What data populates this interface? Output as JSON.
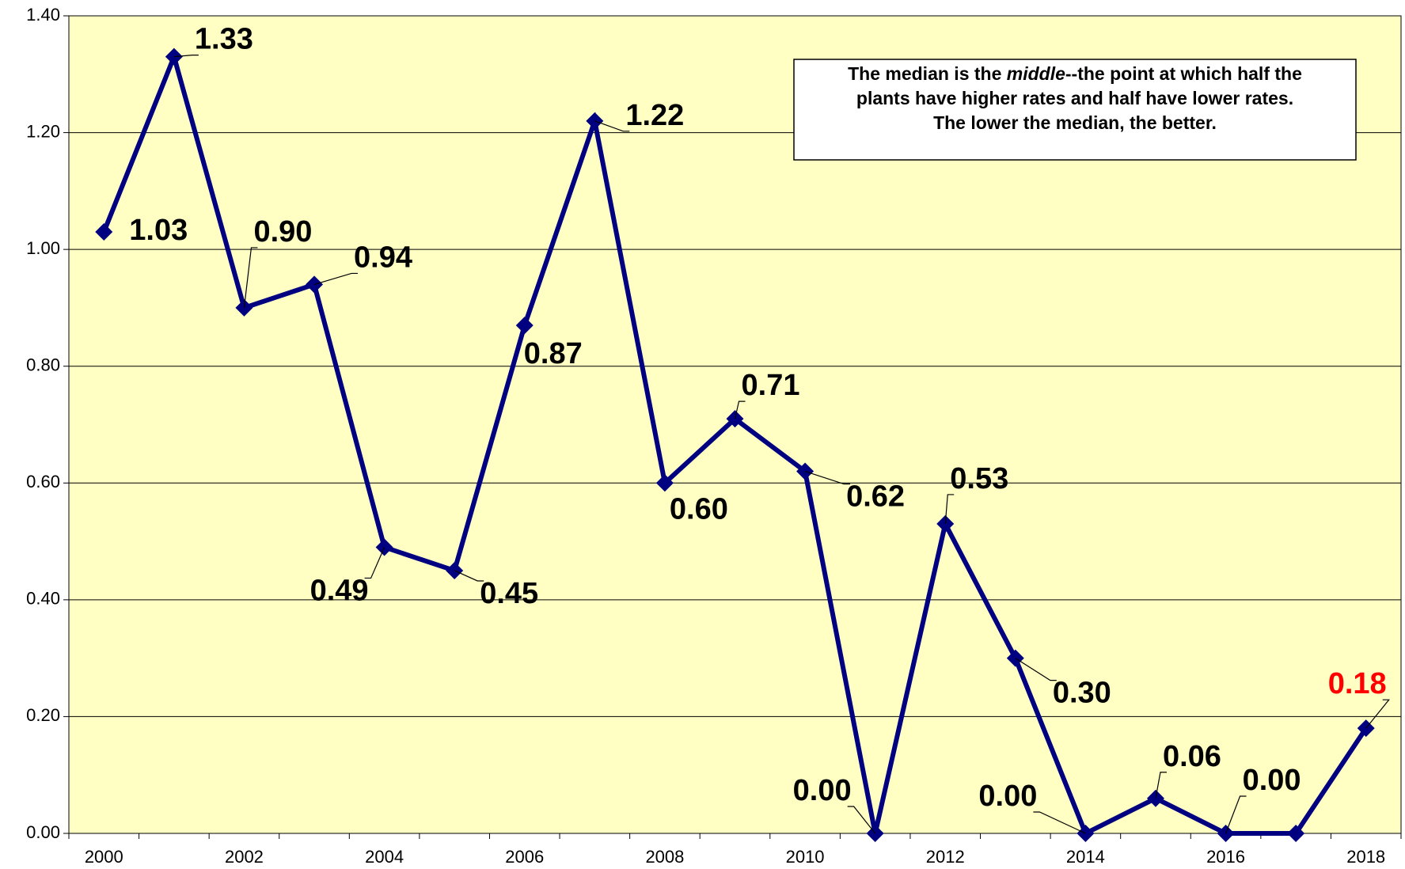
{
  "chart_data": {
    "type": "line",
    "categories": [
      "2000",
      null,
      "2002",
      null,
      "2004",
      null,
      "2006",
      null,
      "2008",
      null,
      "2010",
      null,
      "2012",
      null,
      "2014",
      null,
      "2016",
      null,
      "2018"
    ],
    "series": [
      {
        "color": "#000080",
        "values": [
          1.03,
          1.33,
          0.9,
          0.94,
          0.49,
          0.45,
          0.87,
          1.22,
          0.6,
          0.71,
          0.62,
          0.0,
          0.53,
          0.3,
          0.0,
          0.06,
          0.0,
          0.0,
          0.18
        ],
        "value_labels": [
          "1.03",
          "1.33",
          "0.90",
          "0.94",
          "0.49",
          "0.45",
          "0.87",
          "1.22",
          "0.60",
          "0.71",
          "0.62",
          "0.00",
          "0.53",
          "0.30",
          "0.00",
          "0.06",
          "0.00",
          null,
          "0.18"
        ],
        "highlight_color": "#ff0000"
      }
    ],
    "ylim": [
      0,
      1.4
    ],
    "yticks": [
      {
        "value": 0,
        "label": "0.00"
      },
      {
        "value": 0.2,
        "label": "0.20"
      },
      {
        "value": 0.4,
        "label": "0.40"
      },
      {
        "value": 0.6,
        "label": "0.60"
      },
      {
        "value": 0.8,
        "label": "0.80"
      },
      {
        "value": 1.0,
        "label": "1.00"
      },
      {
        "value": 1.2,
        "label": "1.20"
      },
      {
        "value": 1.4,
        "label": "1.40"
      }
    ],
    "grid": true,
    "plot_background": "#ffffc4",
    "annotation": [
      [
        "The median is the ",
        "middle",
        "--the point at which half the"
      ],
      [
        "plants have higher rates and half have lower rates."
      ],
      [
        "The lower the median, the better."
      ]
    ]
  }
}
